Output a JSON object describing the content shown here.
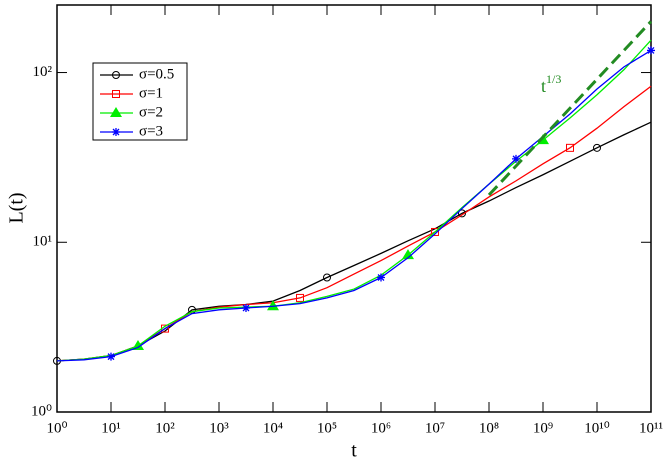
{
  "chart_data": {
    "type": "line",
    "x_label": "t",
    "y_label": "L(t)",
    "log_x": true,
    "log_y": true,
    "xlim": [
      1,
      100000000000
    ],
    "ylim": [
      1,
      250
    ],
    "xticks": [
      {
        "value": 1,
        "label": "10⁰"
      },
      {
        "value": 10,
        "label": "10¹"
      },
      {
        "value": 100,
        "label": "10²"
      },
      {
        "value": 1000,
        "label": "10³"
      },
      {
        "value": 10000,
        "label": "10⁴"
      },
      {
        "value": 100000,
        "label": "10⁵"
      },
      {
        "value": 1000000,
        "label": "10⁶"
      },
      {
        "value": 10000000,
        "label": "10⁷"
      },
      {
        "value": 100000000,
        "label": "10⁸"
      },
      {
        "value": 1000000000,
        "label": "10⁹"
      },
      {
        "value": 10000000000,
        "label": "10¹⁰"
      },
      {
        "value": 100000000000,
        "label": "10¹¹"
      }
    ],
    "yticks": [
      {
        "value": 1,
        "label": "10⁰"
      },
      {
        "value": 10,
        "label": "10¹"
      },
      {
        "value": 100,
        "label": "10²"
      }
    ],
    "legend": "upper left",
    "x": [
      1,
      3.162,
      10,
      31.62,
      100,
      316.2,
      1000,
      3162,
      10000,
      31620,
      100000,
      316200,
      1000000,
      3162000,
      10000000,
      31620000,
      100000000,
      316200000,
      1000000000,
      3162000000,
      10000000000,
      31620000000,
      100000000000
    ],
    "series": [
      {
        "name": "σ=0.5",
        "color": "#000000",
        "marker": "circle",
        "values": [
          2.0,
          2.05,
          2.15,
          2.45,
          3.0,
          4.0,
          4.2,
          4.3,
          4.5,
          5.2,
          6.2,
          7.3,
          8.6,
          10.2,
          12,
          14.8,
          17.5,
          21,
          25,
          30,
          36,
          43,
          51
        ]
      },
      {
        "name": "σ=1",
        "color": "#ff0000",
        "marker": "square",
        "values": [
          2.0,
          2.05,
          2.15,
          2.45,
          3.1,
          3.9,
          4.15,
          4.3,
          4.4,
          4.7,
          5.4,
          6.5,
          7.8,
          9.5,
          11.5,
          14.5,
          18.5,
          23,
          29,
          36,
          47,
          63,
          83
        ]
      },
      {
        "name": "σ=2",
        "color": "#00ee00",
        "marker": "triangle",
        "values": [
          2.0,
          2.05,
          2.15,
          2.45,
          3.2,
          3.9,
          4.1,
          4.15,
          4.2,
          4.4,
          4.8,
          5.3,
          6.4,
          8.4,
          11.5,
          16,
          22,
          30,
          40,
          54,
          74,
          104,
          155
        ]
      },
      {
        "name": "σ=3",
        "color": "#0000ff",
        "marker": "star",
        "values": [
          2.0,
          2.03,
          2.12,
          2.4,
          3.1,
          3.8,
          4.0,
          4.1,
          4.2,
          4.35,
          4.7,
          5.2,
          6.2,
          8.1,
          11.2,
          15.8,
          22,
          31,
          42,
          57,
          80,
          108,
          135
        ]
      }
    ],
    "reference_line": {
      "x": [
        100000000,
        100000000000
      ],
      "values": [
        19,
        200
      ],
      "color": "#228b22",
      "dashed": true
    },
    "annotation": {
      "base": "t",
      "sup": "1/3"
    }
  }
}
